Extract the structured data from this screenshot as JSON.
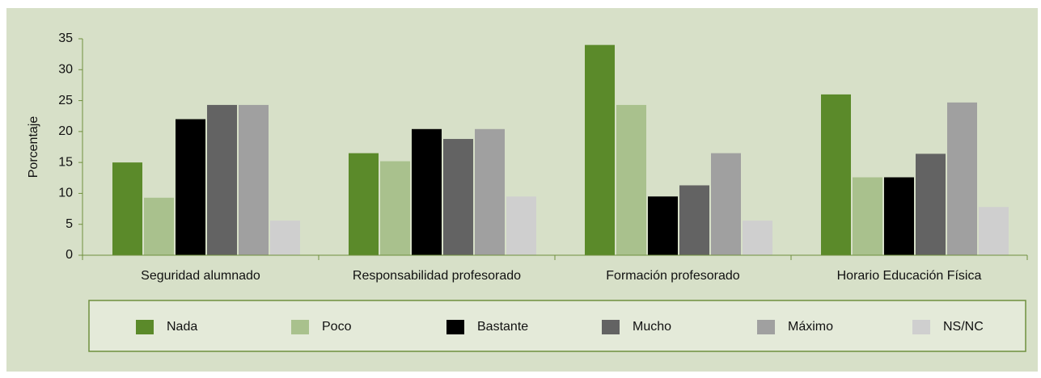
{
  "chart_data": {
    "type": "bar",
    "y_label": "Porcentaje",
    "categories": [
      "Seguridad alumnado",
      "Responsabilidad profesorado",
      "Formación profesorado",
      "Horario Educación Física"
    ],
    "series": [
      {
        "name": "Nada",
        "color": "#5b8a2a",
        "values": [
          15,
          16.5,
          34,
          26
        ]
      },
      {
        "name": "Poco",
        "color": "#a9c18d",
        "values": [
          9.3,
          15.2,
          24.3,
          12.6
        ]
      },
      {
        "name": "Bastante",
        "color": "#000000",
        "values": [
          22,
          20.4,
          9.5,
          12.6
        ]
      },
      {
        "name": "Mucho",
        "color": "#636363",
        "values": [
          24.3,
          18.8,
          11.3,
          16.4
        ]
      },
      {
        "name": "Máximo",
        "color": "#a0a0a0",
        "values": [
          24.3,
          20.4,
          16.5,
          24.7
        ]
      },
      {
        "name": "NS/NC",
        "color": "#cfcfcf",
        "values": [
          5.6,
          9.5,
          5.6,
          7.8
        ]
      }
    ],
    "ylim": [
      0,
      35
    ],
    "yticks": [
      0,
      5,
      10,
      15,
      20,
      25,
      30,
      35
    ],
    "grid": false
  }
}
